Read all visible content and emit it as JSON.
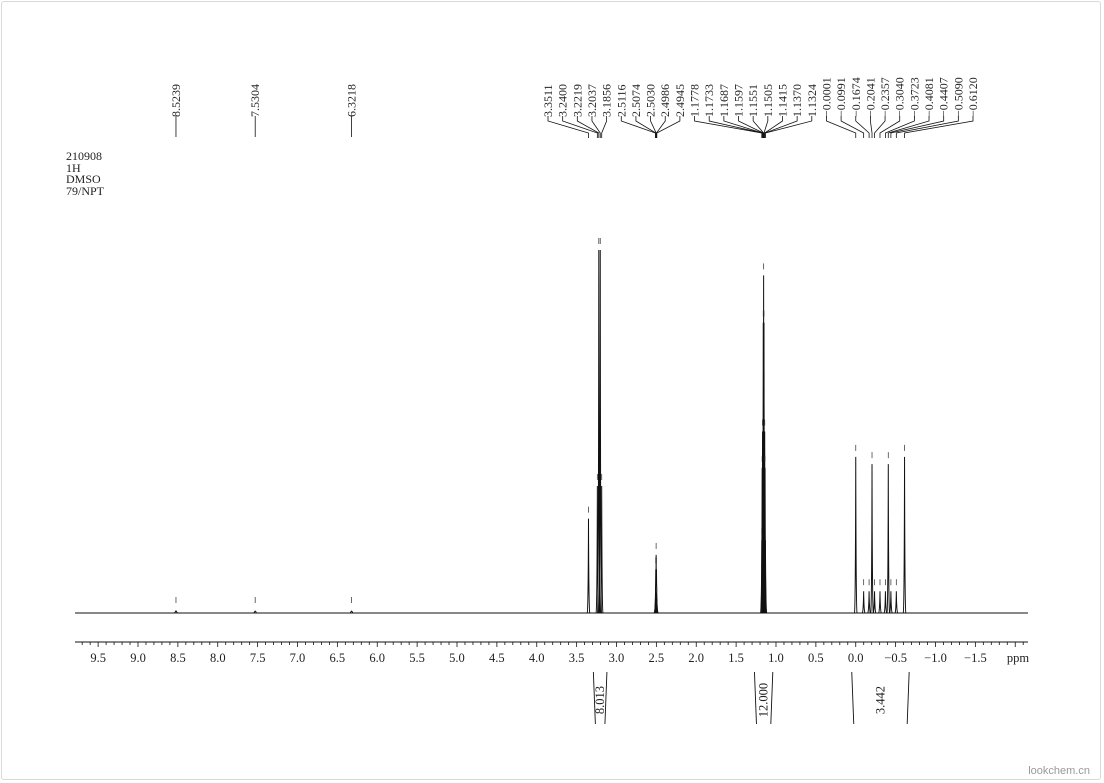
{
  "watermark": "lookchem.cn",
  "info_lines": [
    "210908",
    "1H",
    "DMSO",
    "79/NPT"
  ],
  "chart_data": {
    "type": "line",
    "title": "",
    "xlabel": "ppm",
    "ylabel": "",
    "xlim": [
      9.79,
      -2.16
    ],
    "x_reversed": true,
    "grid": false,
    "x_ticks": [
      9.5,
      9.0,
      8.5,
      8.0,
      7.5,
      7.0,
      6.5,
      6.0,
      5.5,
      5.0,
      4.5,
      4.0,
      3.5,
      3.0,
      2.5,
      2.0,
      1.5,
      1.0,
      0.5,
      0.0,
      -0.5,
      -1.0,
      -1.5
    ],
    "x_tick_labels": [
      "9.5",
      "9.0",
      "8.5",
      "8.0",
      "7.5",
      "7.0",
      "6.5",
      "6.0",
      "5.5",
      "5.0",
      "4.5",
      "4.0",
      "3.5",
      "3.0",
      "2.5",
      "2.0",
      "1.5",
      "1.0",
      "0.5",
      "0.0",
      "−0.5",
      "−1.0",
      "−1.5"
    ],
    "peaks": [
      {
        "ppm": 8.5239,
        "intensity": 0.6,
        "label": "8.5239"
      },
      {
        "ppm": 7.5304,
        "intensity": 0.3,
        "label": "7.5304"
      },
      {
        "ppm": 6.3218,
        "intensity": 0.4,
        "label": "6.3218"
      },
      {
        "ppm": 3.3511,
        "intensity": 26,
        "label": "3.3511"
      },
      {
        "ppm": 3.24,
        "intensity": 35,
        "label": "3.2400"
      },
      {
        "ppm": 3.2219,
        "intensity": 100,
        "label": "3.2219"
      },
      {
        "ppm": 3.2037,
        "intensity": 100,
        "label": "3.2037"
      },
      {
        "ppm": 3.1856,
        "intensity": 35,
        "label": "3.1856"
      },
      {
        "ppm": 2.5116,
        "intensity": 4,
        "label": "2.5116"
      },
      {
        "ppm": 2.5074,
        "intensity": 12,
        "label": "2.5074"
      },
      {
        "ppm": 2.503,
        "intensity": 16,
        "label": "2.5030"
      },
      {
        "ppm": 2.4986,
        "intensity": 12,
        "label": "2.4986"
      },
      {
        "ppm": 2.4945,
        "intensity": 4,
        "label": "2.4945"
      },
      {
        "ppm": 1.1778,
        "intensity": 20,
        "label": "1.1778"
      },
      {
        "ppm": 1.1733,
        "intensity": 40,
        "label": "1.1733"
      },
      {
        "ppm": 1.1687,
        "intensity": 50,
        "label": "1.1687"
      },
      {
        "ppm": 1.1597,
        "intensity": 80,
        "label": "1.1597"
      },
      {
        "ppm": 1.1551,
        "intensity": 93,
        "label": "1.1551"
      },
      {
        "ppm": 1.1505,
        "intensity": 80,
        "label": "1.1505"
      },
      {
        "ppm": 1.1415,
        "intensity": 50,
        "label": "1.1415"
      },
      {
        "ppm": 1.137,
        "intensity": 40,
        "label": "1.1370"
      },
      {
        "ppm": 1.1324,
        "intensity": 20,
        "label": "1.1324"
      },
      {
        "ppm": -0.0001,
        "intensity": 43,
        "label": "−0.0001"
      },
      {
        "ppm": -0.0991,
        "intensity": 6,
        "label": "−0.0991"
      },
      {
        "ppm": -0.1674,
        "intensity": 6,
        "label": "−0.1674"
      },
      {
        "ppm": -0.2041,
        "intensity": 41,
        "label": "−0.2041"
      },
      {
        "ppm": -0.2357,
        "intensity": 6,
        "label": "−0.2357"
      },
      {
        "ppm": -0.304,
        "intensity": 6,
        "label": "−0.3040"
      },
      {
        "ppm": -0.3723,
        "intensity": 6,
        "label": "−0.3723"
      },
      {
        "ppm": -0.4081,
        "intensity": 41,
        "label": "−0.4081"
      },
      {
        "ppm": -0.4407,
        "intensity": 6,
        "label": "−0.4407"
      },
      {
        "ppm": -0.509,
        "intensity": 6,
        "label": "−0.5090"
      },
      {
        "ppm": -0.612,
        "intensity": 43,
        "label": "−0.6120"
      }
    ],
    "integrals": [
      {
        "from": 3.29,
        "to": 3.12,
        "value": "8.013"
      },
      {
        "from": 1.27,
        "to": 1.04,
        "value": "12.000"
      },
      {
        "from": 0.05,
        "to": -0.67,
        "value": "3.442"
      }
    ],
    "colors": {
      "line": "#111111"
    }
  }
}
